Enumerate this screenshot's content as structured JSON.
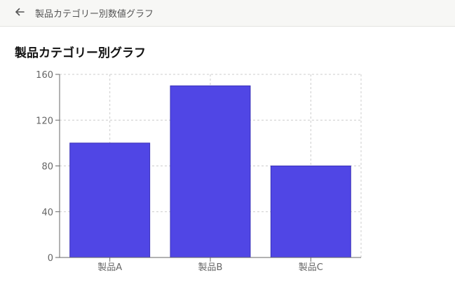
{
  "header": {
    "back_icon": "arrow-left-icon",
    "title": "製品カテゴリー別数値グラフ"
  },
  "page": {
    "title": "製品カテゴリー別グラフ"
  },
  "colors": {
    "bar": "#5046e5",
    "bar_stroke": "#3a32b8",
    "grid": "#cccccc",
    "axis": "#666666"
  },
  "chart_data": {
    "type": "bar",
    "categories": [
      "製品A",
      "製品B",
      "製品C"
    ],
    "values": [
      100,
      150,
      80
    ],
    "ylim": [
      0,
      160
    ],
    "yticks": [
      0,
      40,
      80,
      120,
      160
    ],
    "grid": true,
    "legend": "none"
  }
}
